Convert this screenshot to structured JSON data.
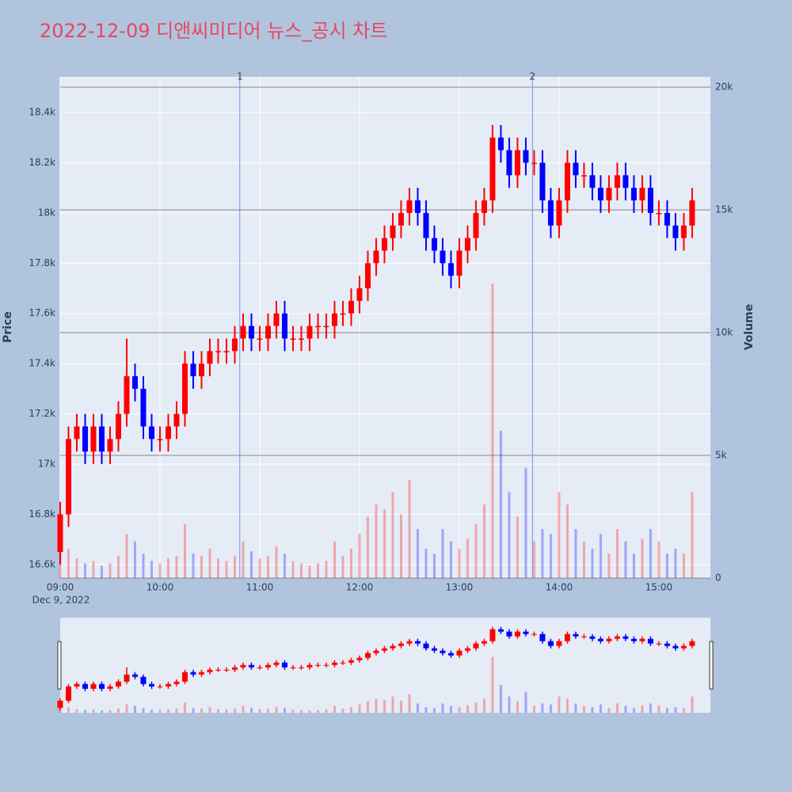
{
  "chart_data": {
    "type": "candlestick",
    "title": "2022-12-09 디앤씨미디어 뉴스_공시 차트",
    "x": [
      "09:00",
      "09:05",
      "09:10",
      "09:15",
      "09:20",
      "09:25",
      "09:30",
      "09:35",
      "09:40",
      "09:45",
      "09:50",
      "09:55",
      "10:00",
      "10:05",
      "10:10",
      "10:15",
      "10:20",
      "10:25",
      "10:30",
      "10:35",
      "10:40",
      "10:45",
      "10:50",
      "10:55",
      "11:00",
      "11:05",
      "11:10",
      "11:15",
      "11:20",
      "11:25",
      "11:30",
      "11:35",
      "11:40",
      "11:45",
      "11:50",
      "11:55",
      "12:00",
      "12:05",
      "12:10",
      "12:15",
      "12:20",
      "12:25",
      "12:30",
      "12:35",
      "12:40",
      "12:45",
      "12:50",
      "12:55",
      "13:00",
      "13:05",
      "13:10",
      "13:15",
      "13:20",
      "13:25",
      "13:30",
      "13:35",
      "13:40",
      "13:45",
      "13:50",
      "13:55",
      "14:00",
      "14:05",
      "14:10",
      "14:15",
      "14:20",
      "14:25",
      "14:30",
      "14:35",
      "14:40",
      "14:45",
      "14:50",
      "14:55",
      "15:00",
      "15:05",
      "15:10",
      "15:15",
      "15:20"
    ],
    "open": [
      16650,
      16800,
      17100,
      17150,
      17050,
      17150,
      17050,
      17100,
      17200,
      17350,
      17300,
      17150,
      17100,
      17100,
      17150,
      17200,
      17400,
      17350,
      17400,
      17450,
      17450,
      17450,
      17500,
      17550,
      17500,
      17500,
      17550,
      17600,
      17500,
      17500,
      17500,
      17550,
      17550,
      17550,
      17600,
      17600,
      17650,
      17700,
      17800,
      17850,
      17900,
      17950,
      18000,
      18050,
      18000,
      17900,
      17850,
      17800,
      17750,
      17850,
      17900,
      18000,
      18050,
      18300,
      18250,
      18150,
      18250,
      18200,
      18200,
      18050,
      17950,
      18050,
      18200,
      18150,
      18150,
      18100,
      18050,
      18100,
      18150,
      18100,
      18050,
      18100,
      18000,
      18000,
      17950,
      17900,
      17950
    ],
    "high": [
      16850,
      17150,
      17200,
      17200,
      17200,
      17200,
      17150,
      17250,
      17500,
      17400,
      17350,
      17200,
      17150,
      17200,
      17250,
      17450,
      17450,
      17450,
      17500,
      17500,
      17500,
      17550,
      17600,
      17600,
      17550,
      17600,
      17650,
      17650,
      17550,
      17550,
      17600,
      17600,
      17600,
      17650,
      17650,
      17700,
      17750,
      17850,
      17900,
      17950,
      18000,
      18050,
      18100,
      18100,
      18050,
      17950,
      17900,
      17850,
      17900,
      17950,
      18050,
      18100,
      18350,
      18350,
      18300,
      18300,
      18300,
      18250,
      18250,
      18100,
      18100,
      18250,
      18250,
      18200,
      18200,
      18150,
      18150,
      18200,
      18200,
      18150,
      18150,
      18150,
      18050,
      18050,
      18000,
      18000,
      18100
    ],
    "low": [
      16600,
      16750,
      17050,
      17000,
      17000,
      17000,
      17000,
      17050,
      17150,
      17250,
      17100,
      17050,
      17050,
      17050,
      17100,
      17150,
      17300,
      17300,
      17350,
      17400,
      17400,
      17400,
      17450,
      17450,
      17450,
      17450,
      17500,
      17450,
      17450,
      17450,
      17450,
      17500,
      17500,
      17500,
      17550,
      17550,
      17600,
      17650,
      17750,
      17800,
      17850,
      17900,
      17950,
      17950,
      17850,
      17800,
      17750,
      17700,
      17700,
      17800,
      17850,
      17950,
      18000,
      18200,
      18100,
      18100,
      18150,
      18150,
      18000,
      17900,
      17900,
      18000,
      18100,
      18100,
      18050,
      18000,
      18000,
      18050,
      18050,
      18000,
      18000,
      17950,
      17950,
      17900,
      17850,
      17850,
      17900
    ],
    "close": [
      16800,
      17100,
      17150,
      17050,
      17150,
      17050,
      17100,
      17200,
      17350,
      17300,
      17150,
      17100,
      17100,
      17150,
      17200,
      17400,
      17350,
      17400,
      17450,
      17450,
      17450,
      17500,
      17550,
      17500,
      17500,
      17550,
      17600,
      17500,
      17500,
      17500,
      17550,
      17550,
      17550,
      17600,
      17600,
      17650,
      17700,
      17800,
      17850,
      17900,
      17950,
      18000,
      18050,
      18000,
      17900,
      17850,
      17800,
      17750,
      17850,
      17900,
      18000,
      18050,
      18300,
      18250,
      18150,
      18250,
      18200,
      18200,
      18050,
      17950,
      18050,
      18200,
      18150,
      18150,
      18100,
      18050,
      18100,
      18150,
      18100,
      18050,
      18100,
      18000,
      18000,
      17950,
      17900,
      17950,
      18050
    ],
    "volume": [
      1500,
      1200,
      800,
      600,
      700,
      500,
      600,
      900,
      1800,
      1500,
      1000,
      700,
      600,
      800,
      900,
      2200,
      1000,
      900,
      1200,
      800,
      700,
      900,
      1500,
      1100,
      800,
      900,
      1300,
      1000,
      700,
      600,
      500,
      600,
      700,
      1500,
      900,
      1200,
      1800,
      2500,
      3000,
      2800,
      3500,
      2600,
      4000,
      2000,
      1200,
      1000,
      2000,
      1500,
      1200,
      1600,
      2200,
      3000,
      12000,
      6000,
      3500,
      2500,
      4500,
      1500,
      2000,
      1800,
      3500,
      3000,
      2000,
      1500,
      1200,
      1800,
      1000,
      2000,
      1500,
      1000,
      1600,
      2000,
      1500,
      1000,
      1200,
      1000,
      3500
    ],
    "up_color": "#ff0000",
    "down_color": "#0000ff",
    "xlim": [
      "09:00",
      "15:31"
    ],
    "xticks": [
      "09:00",
      "10:00",
      "11:00",
      "12:00",
      "13:00",
      "14:00",
      "15:00"
    ],
    "x_date_label": "Dec 9, 2022",
    "ylim": [
      16546,
      18542
    ],
    "yticks": [
      {
        "value": 16600,
        "label": "16.6k"
      },
      {
        "value": 16800,
        "label": "16.8k"
      },
      {
        "value": 17000,
        "label": "17k"
      },
      {
        "value": 17200,
        "label": "17.2k"
      },
      {
        "value": 17400,
        "label": "17.4k"
      },
      {
        "value": 17600,
        "label": "17.6k"
      },
      {
        "value": 17800,
        "label": "17.8k"
      },
      {
        "value": 18000,
        "label": "18k"
      },
      {
        "value": 18200,
        "label": "18.2k"
      },
      {
        "value": 18400,
        "label": "18.4k"
      }
    ],
    "y_title": "Price",
    "y2lim": [
      0,
      20420
    ],
    "y2ticks": [
      0,
      {
        "value": 5000,
        "label": "5k"
      },
      {
        "value": 10000,
        "label": "10k"
      },
      {
        "value": 15000,
        "label": "15k"
      },
      {
        "value": 20000,
        "label": "20k"
      }
    ],
    "y2_title": "Volume",
    "events": [
      {
        "x": "10:48",
        "label": "1"
      },
      {
        "x": "13:44",
        "label": "2"
      }
    ],
    "grid": true,
    "rangeslider": true
  }
}
